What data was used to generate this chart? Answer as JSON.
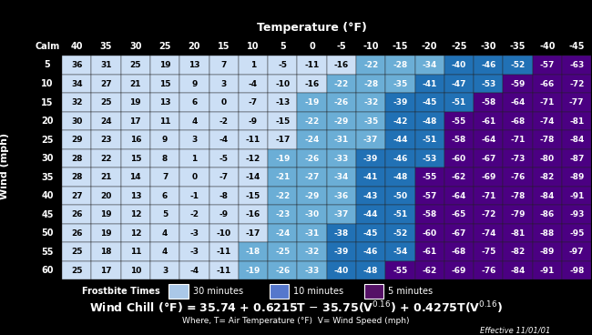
{
  "title": "Temperature (°F)",
  "ylabel": "Wind (mph)",
  "temp_cols": [
    40,
    35,
    30,
    25,
    20,
    15,
    10,
    5,
    0,
    -5,
    -10,
    -15,
    -20,
    -25,
    -30,
    -35,
    -40,
    -45
  ],
  "wind_rows": [
    5,
    10,
    15,
    20,
    25,
    30,
    35,
    40,
    45,
    50,
    55,
    60
  ],
  "table_data": [
    [
      36,
      31,
      25,
      19,
      13,
      7,
      1,
      -5,
      -11,
      -16,
      -22,
      -28,
      -34,
      -40,
      -46,
      -52,
      -57,
      -63
    ],
    [
      34,
      27,
      21,
      15,
      9,
      3,
      -4,
      -10,
      -16,
      -22,
      -28,
      -35,
      -41,
      -47,
      -53,
      -59,
      -66,
      -72
    ],
    [
      32,
      25,
      19,
      13,
      6,
      0,
      -7,
      -13,
      -19,
      -26,
      -32,
      -39,
      -45,
      -51,
      -58,
      -64,
      -71,
      -77
    ],
    [
      30,
      24,
      17,
      11,
      4,
      -2,
      -9,
      -15,
      -22,
      -29,
      -35,
      -42,
      -48,
      -55,
      -61,
      -68,
      -74,
      -81
    ],
    [
      29,
      23,
      16,
      9,
      3,
      -4,
      -11,
      -17,
      -24,
      -31,
      -37,
      -44,
      -51,
      -58,
      -64,
      -71,
      -78,
      -84
    ],
    [
      28,
      22,
      15,
      8,
      1,
      -5,
      -12,
      -19,
      -26,
      -33,
      -39,
      -46,
      -53,
      -60,
      -67,
      -73,
      -80,
      -87
    ],
    [
      28,
      21,
      14,
      7,
      0,
      -7,
      -14,
      -21,
      -27,
      -34,
      -41,
      -48,
      -55,
      -62,
      -69,
      -76,
      -82,
      -89
    ],
    [
      27,
      20,
      13,
      6,
      -1,
      -8,
      -15,
      -22,
      -29,
      -36,
      -43,
      -50,
      -57,
      -64,
      -71,
      -78,
      -84,
      -91
    ],
    [
      26,
      19,
      12,
      5,
      -2,
      -9,
      -16,
      -23,
      -30,
      -37,
      -44,
      -51,
      -58,
      -65,
      -72,
      -79,
      -86,
      -93
    ],
    [
      26,
      19,
      12,
      4,
      -3,
      -10,
      -17,
      -24,
      -31,
      -38,
      -45,
      -52,
      -60,
      -67,
      -74,
      -81,
      -88,
      -95
    ],
    [
      25,
      18,
      11,
      4,
      -3,
      -11,
      -18,
      -25,
      -32,
      -39,
      -46,
      -54,
      -61,
      -68,
      -75,
      -82,
      -89,
      -97
    ],
    [
      25,
      17,
      10,
      3,
      -4,
      -11,
      -19,
      -26,
      -33,
      -40,
      -48,
      -55,
      -62,
      -69,
      -76,
      -84,
      -91,
      -98
    ]
  ],
  "bg_color": "#000000",
  "color_white": "#CCDFF5",
  "color_lightblue": "#6BAED6",
  "color_medblue": "#2171B5",
  "color_darkpurple": "#4B0082",
  "thresh_white": -18,
  "thresh_lightblue": -38,
  "thresh_medblue": -55,
  "frostbite_label": "Frostbite Times",
  "legend_30min": "30 minutes",
  "legend_10min": "10 minutes",
  "legend_5min": "5 minutes",
  "legend_color_30": "#AAC8E8",
  "legend_color_10": "#5577CC",
  "legend_color_5": "#551166",
  "formula_line1": "Wind Chill (°F) = 35.74 + 0.6215T - 35.75(V",
  "formula_sup1": "0.16",
  "formula_mid": ") + 0.4275T(V",
  "formula_sup2": "0.16",
  "formula_end": ")",
  "formula_line2": "Where, T= Air Temperature (°F)  V= Wind Speed (mph)",
  "effective": "Effective 11/01/01"
}
